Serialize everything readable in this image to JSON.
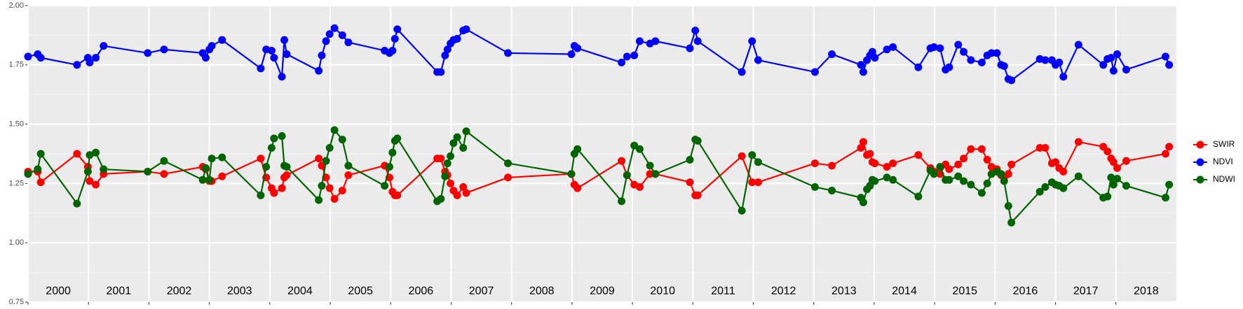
{
  "chart_data": {
    "type": "line",
    "x": [
      2000.0,
      2000.16,
      2000.21,
      2000.81,
      2000.99,
      2001.02,
      2001.12,
      2001.25,
      2001.98,
      2002.25,
      2002.89,
      2002.94,
      2003.0,
      2003.04,
      2003.21,
      2003.85,
      2003.94,
      2004.03,
      2004.07,
      2004.2,
      2004.24,
      2004.28,
      2004.81,
      2004.86,
      2004.93,
      2004.99,
      2005.07,
      2005.2,
      2005.3,
      2005.9,
      2005.98,
      2006.03,
      2006.07,
      2006.11,
      2006.77,
      2006.83,
      2006.9,
      2006.94,
      2006.99,
      2007.04,
      2007.1,
      2007.2,
      2007.25,
      2007.94,
      2008.99,
      2009.04,
      2009.09,
      2009.82,
      2009.91,
      2010.03,
      2010.12,
      2010.29,
      2010.38,
      2010.95,
      2011.04,
      2011.08,
      2011.81,
      2011.98,
      2012.08,
      2013.02,
      2013.3,
      2013.78,
      2013.82,
      2013.88,
      2013.93,
      2013.97,
      2014.01,
      2014.21,
      2014.31,
      2014.73,
      2014.93,
      2014.99,
      2015.09,
      2015.18,
      2015.24,
      2015.39,
      2015.48,
      2015.6,
      2015.78,
      2015.87,
      2015.94,
      2016.03,
      2016.1,
      2016.15,
      2016.22,
      2016.27,
      2016.74,
      2016.83,
      2016.94,
      2017.0,
      2017.06,
      2017.13,
      2017.38,
      2017.79,
      2017.86,
      2017.92,
      2017.96,
      2018.02,
      2018.17,
      2018.82,
      2018.88
    ],
    "series": [
      {
        "name": "SWIR",
        "color": "#ff0000",
        "values": [
          1.3,
          1.3,
          1.255,
          1.375,
          1.32,
          1.26,
          1.245,
          1.29,
          1.3,
          1.29,
          1.32,
          1.31,
          1.26,
          1.26,
          1.28,
          1.355,
          1.275,
          1.23,
          1.21,
          1.23,
          1.275,
          1.285,
          1.355,
          1.325,
          1.275,
          1.23,
          1.185,
          1.22,
          1.285,
          1.325,
          1.275,
          1.215,
          1.2,
          1.2,
          1.355,
          1.355,
          1.3,
          1.285,
          1.25,
          1.22,
          1.2,
          1.235,
          1.21,
          1.275,
          1.29,
          1.245,
          1.23,
          1.345,
          1.285,
          1.245,
          1.235,
          1.29,
          1.29,
          1.255,
          1.2,
          1.2,
          1.365,
          1.255,
          1.255,
          1.335,
          1.325,
          1.4,
          1.425,
          1.37,
          1.375,
          1.34,
          1.335,
          1.32,
          1.335,
          1.37,
          1.315,
          1.3,
          1.29,
          1.33,
          1.31,
          1.33,
          1.355,
          1.395,
          1.395,
          1.35,
          1.32,
          1.31,
          1.285,
          1.275,
          1.29,
          1.33,
          1.4,
          1.4,
          1.335,
          1.34,
          1.315,
          1.3,
          1.425,
          1.405,
          1.385,
          1.355,
          1.34,
          1.315,
          1.345,
          1.375,
          1.405
        ]
      },
      {
        "name": "NDVI",
        "color": "#0000ff",
        "values": [
          1.785,
          1.795,
          1.78,
          1.75,
          1.78,
          1.76,
          1.78,
          1.83,
          1.8,
          1.815,
          1.8,
          1.78,
          1.815,
          1.83,
          1.855,
          1.735,
          1.815,
          1.81,
          1.78,
          1.7,
          1.855,
          1.795,
          1.725,
          1.79,
          1.85,
          1.88,
          1.905,
          1.875,
          1.845,
          1.81,
          1.8,
          1.81,
          1.86,
          1.9,
          1.72,
          1.72,
          1.79,
          1.815,
          1.84,
          1.855,
          1.86,
          1.895,
          1.9,
          1.8,
          1.795,
          1.83,
          1.82,
          1.76,
          1.785,
          1.79,
          1.85,
          1.84,
          1.85,
          1.82,
          1.895,
          1.85,
          1.72,
          1.85,
          1.77,
          1.72,
          1.795,
          1.75,
          1.72,
          1.77,
          1.79,
          1.805,
          1.78,
          1.815,
          1.825,
          1.74,
          1.82,
          1.825,
          1.82,
          1.73,
          1.74,
          1.835,
          1.805,
          1.77,
          1.76,
          1.79,
          1.8,
          1.8,
          1.75,
          1.745,
          1.69,
          1.685,
          1.775,
          1.77,
          1.77,
          1.75,
          1.76,
          1.7,
          1.835,
          1.75,
          1.775,
          1.78,
          1.725,
          1.795,
          1.73,
          1.785,
          1.75
        ]
      },
      {
        "name": "NDWI",
        "color": "#006400",
        "values": [
          1.29,
          1.31,
          1.375,
          1.165,
          1.3,
          1.37,
          1.38,
          1.31,
          1.3,
          1.345,
          1.265,
          1.315,
          1.265,
          1.355,
          1.36,
          1.2,
          1.32,
          1.4,
          1.44,
          1.45,
          1.325,
          1.32,
          1.18,
          1.24,
          1.345,
          1.4,
          1.475,
          1.435,
          1.325,
          1.24,
          1.32,
          1.38,
          1.43,
          1.44,
          1.175,
          1.185,
          1.28,
          1.335,
          1.365,
          1.42,
          1.445,
          1.4,
          1.47,
          1.335,
          1.29,
          1.375,
          1.395,
          1.175,
          1.285,
          1.41,
          1.395,
          1.325,
          1.29,
          1.35,
          1.435,
          1.43,
          1.135,
          1.37,
          1.34,
          1.235,
          1.22,
          1.19,
          1.17,
          1.225,
          1.24,
          1.265,
          1.26,
          1.275,
          1.265,
          1.195,
          1.305,
          1.29,
          1.32,
          1.265,
          1.265,
          1.28,
          1.26,
          1.245,
          1.21,
          1.25,
          1.29,
          1.3,
          1.29,
          1.26,
          1.155,
          1.085,
          1.215,
          1.235,
          1.255,
          1.245,
          1.24,
          1.23,
          1.28,
          1.19,
          1.195,
          1.275,
          1.245,
          1.27,
          1.24,
          1.19,
          1.245
        ]
      }
    ],
    "xlim": [
      2000,
      2019
    ],
    "xticks": [
      2000,
      2001,
      2002,
      2003,
      2004,
      2005,
      2006,
      2007,
      2008,
      2009,
      2010,
      2011,
      2012,
      2013,
      2014,
      2015,
      2016,
      2017,
      2018
    ],
    "ylim": [
      0.75,
      2.0
    ],
    "yticks": [
      0.75,
      {
        "value": 1.0,
        "label": "1.00"
      },
      1.25,
      {
        "value": 1.5,
        "label": "1.50"
      },
      1.75,
      {
        "value": 2.0,
        "label": "2.00"
      }
    ],
    "grid": true,
    "legend": "right"
  }
}
